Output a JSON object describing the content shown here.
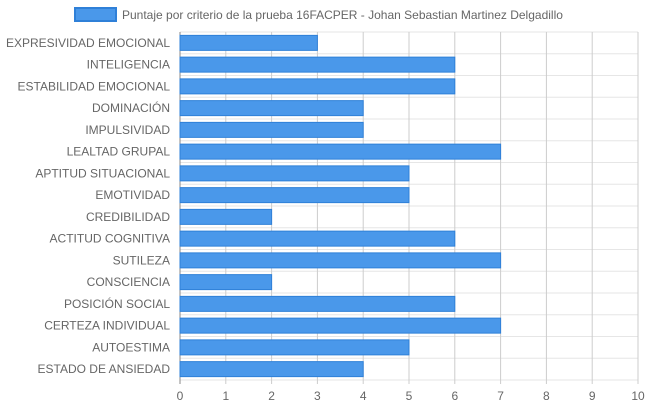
{
  "chart_data": {
    "type": "bar",
    "orientation": "horizontal",
    "categories": [
      "EXPRESIVIDAD EMOCIONAL",
      "INTELIGENCIA",
      "ESTABILIDAD EMOCIONAL",
      "DOMINACIÓN",
      "IMPULSIVIDAD",
      "LEALTAD GRUPAL",
      "APTITUD SITUACIONAL",
      "EMOTIVIDAD",
      "CREDIBILIDAD",
      "ACTITUD COGNITIVA",
      "SUTILEZA",
      "CONSCIENCIA",
      "POSICIÓN SOCIAL",
      "CERTEZA INDIVIDUAL",
      "AUTOESTIMA",
      "ESTADO DE ANSIEDAD"
    ],
    "series": [
      {
        "name": "Puntaje por criterio de la prueba 16FACPER - Johan Sebastian Martinez Delgadillo",
        "values": [
          3,
          6,
          6,
          4,
          4,
          7,
          5,
          5,
          2,
          6,
          7,
          2,
          6,
          7,
          5,
          4
        ],
        "color": "#4a98ea",
        "border_color": "#2f80d8"
      }
    ],
    "xlim": [
      0,
      10
    ],
    "xticks": [
      "0",
      "1",
      "2",
      "3",
      "4",
      "5",
      "6",
      "7",
      "8",
      "9",
      "10"
    ],
    "grid": true,
    "legend_position": "top"
  }
}
